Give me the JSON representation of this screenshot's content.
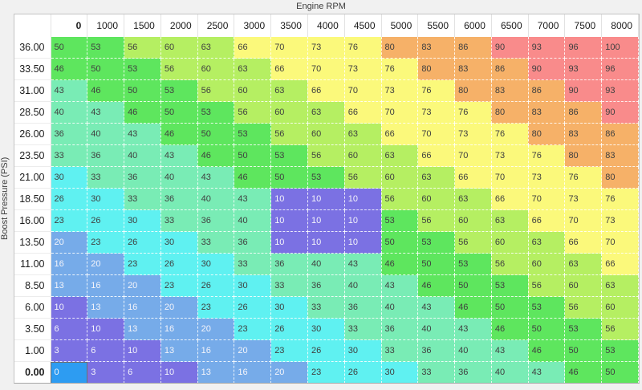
{
  "table": {
    "x_axis_title": "Engine RPM",
    "y_axis_title": "Boost Pressure (PSI)",
    "column_headers": [
      "0",
      "1000",
      "1500",
      "2000",
      "2500",
      "3000",
      "3500",
      "4000",
      "4500",
      "5000",
      "5500",
      "6000",
      "6500",
      "7000",
      "7500",
      "8000"
    ],
    "row_headers": [
      "36.00",
      "33.50",
      "31.00",
      "28.50",
      "26.00",
      "23.50",
      "21.00",
      "18.50",
      "16.00",
      "13.50",
      "11.00",
      "8.50",
      "6.00",
      "3.50",
      "1.00",
      "0.00"
    ],
    "emphasized_column": "0",
    "emphasized_row": "0.00",
    "values": [
      [
        50,
        53,
        56,
        60,
        63,
        66,
        70,
        73,
        76,
        80,
        83,
        86,
        90,
        93,
        96,
        100
      ],
      [
        46,
        50,
        53,
        56,
        60,
        63,
        66,
        70,
        73,
        76,
        80,
        83,
        86,
        90,
        93,
        96
      ],
      [
        43,
        46,
        50,
        53,
        56,
        60,
        63,
        66,
        70,
        73,
        76,
        80,
        83,
        86,
        90,
        93
      ],
      [
        40,
        43,
        46,
        50,
        53,
        56,
        60,
        63,
        66,
        70,
        73,
        76,
        80,
        83,
        86,
        90
      ],
      [
        36,
        40,
        43,
        46,
        50,
        53,
        56,
        60,
        63,
        66,
        70,
        73,
        76,
        80,
        83,
        86
      ],
      [
        33,
        36,
        40,
        43,
        46,
        50,
        53,
        56,
        60,
        63,
        66,
        70,
        73,
        76,
        80,
        83
      ],
      [
        30,
        33,
        36,
        40,
        43,
        46,
        50,
        53,
        56,
        60,
        63,
        66,
        70,
        73,
        76,
        80
      ],
      [
        26,
        30,
        33,
        36,
        40,
        43,
        10,
        10,
        10,
        56,
        60,
        63,
        66,
        70,
        73,
        76
      ],
      [
        23,
        26,
        30,
        33,
        36,
        40,
        10,
        10,
        10,
        53,
        56,
        60,
        63,
        66,
        70,
        73
      ],
      [
        20,
        23,
        26,
        30,
        33,
        36,
        10,
        10,
        10,
        50,
        53,
        56,
        60,
        63,
        66,
        70
      ],
      [
        16,
        20,
        23,
        26,
        30,
        33,
        36,
        40,
        43,
        46,
        50,
        53,
        56,
        60,
        63,
        66
      ],
      [
        13,
        16,
        20,
        23,
        26,
        30,
        33,
        36,
        40,
        43,
        46,
        50,
        53,
        56,
        60,
        63
      ],
      [
        10,
        13,
        16,
        20,
        23,
        26,
        30,
        33,
        36,
        40,
        43,
        46,
        50,
        53,
        56,
        60
      ],
      [
        6,
        10,
        13,
        16,
        20,
        23,
        26,
        30,
        33,
        36,
        40,
        43,
        46,
        50,
        53,
        56
      ],
      [
        3,
        6,
        10,
        13,
        16,
        20,
        23,
        26,
        30,
        33,
        36,
        40,
        43,
        46,
        50,
        53
      ],
      [
        0,
        3,
        6,
        10,
        13,
        16,
        20,
        23,
        26,
        30,
        33,
        36,
        40,
        43,
        46,
        50
      ]
    ],
    "selected_cell": {
      "row": 15,
      "col": 0,
      "value": 0
    },
    "highlight_block": {
      "rows": [
        "18.50",
        "16.00",
        "13.50"
      ],
      "cols": [
        "3500",
        "4000",
        "4500"
      ],
      "value": 10,
      "color": "#7b71e3"
    },
    "colors": {
      "selected_bg": "#2d9cf2",
      "selected_border": "#6f6f6f",
      "scale": [
        {
          "max": 12,
          "bg": "#7b71e3",
          "text": "light"
        },
        {
          "max": 22,
          "bg": "#76abe9",
          "text": "light"
        },
        {
          "max": 31,
          "bg": "#5ff1f1",
          "text": "dark"
        },
        {
          "max": 44,
          "bg": "#79ecb5",
          "text": "dark"
        },
        {
          "max": 54,
          "bg": "#5ee65e",
          "text": "dark"
        },
        {
          "max": 64,
          "bg": "#b5ef62",
          "text": "dark"
        },
        {
          "max": 77,
          "bg": "#fbf97b",
          "text": "dark"
        },
        {
          "max": 87,
          "bg": "#f6b168",
          "text": "dark"
        },
        {
          "max": 100,
          "bg": "#f98b8b",
          "text": "dark"
        }
      ]
    }
  }
}
